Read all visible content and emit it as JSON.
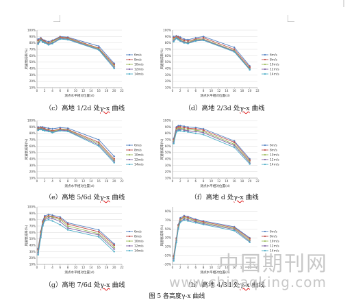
{
  "figure_title": "图 5  各高度γ-x 曲线",
  "watermark": {
    "text": "中国期刊网",
    "url": "www.chinaqking.com"
  },
  "colors": {
    "series": [
      "#4f7fc1",
      "#c0504d",
      "#9bbb59",
      "#8064a2",
      "#4bacc6"
    ],
    "grid": "#d9d9d9",
    "axis": "#888888"
  },
  "chart_data": [
    {
      "id": "c",
      "type": "line",
      "caption_prefix": "（c）高地 1/2d 处",
      "caption_link": "γ-x",
      "caption_suffix": " 曲线",
      "xlabel": "测点水平相对位置(d)",
      "ylabel": "风速衰减率(%)",
      "xlim": [
        0,
        22
      ],
      "ylim": [
        10,
        100
      ],
      "xticks": [
        "0",
        "2",
        "4",
        "6",
        "8",
        "10",
        "12",
        "14",
        "16",
        "18",
        "20",
        "22"
      ],
      "yticks": [
        "10%",
        "20%",
        "30%",
        "40%",
        "50%",
        "60%",
        "70%",
        "80%",
        "90%",
        "100%"
      ],
      "x": [
        0.3,
        1,
        1.5,
        2,
        3,
        4,
        6,
        8,
        16,
        20
      ],
      "series": [
        {
          "name": "6m/s",
          "values": [
            86,
            88,
            85,
            84,
            82,
            84,
            90,
            89,
            75,
            48
          ]
        },
        {
          "name": "8m/s",
          "values": [
            84,
            87,
            84,
            83,
            80,
            83,
            89,
            88,
            72,
            46
          ]
        },
        {
          "name": "10m/s",
          "values": [
            82,
            86,
            83,
            82,
            79,
            82,
            88,
            87,
            71,
            44
          ]
        },
        {
          "name": "12m/s",
          "values": [
            80,
            85,
            82,
            81,
            78,
            80,
            87,
            86,
            70,
            42
          ]
        },
        {
          "name": "14m/s",
          "values": [
            78,
            84,
            81,
            80,
            77,
            79,
            86,
            85,
            69,
            40
          ]
        }
      ]
    },
    {
      "id": "d",
      "type": "line",
      "caption_prefix": "（d）高地 2/3d 处",
      "caption_link": "γ-x",
      "caption_suffix": " 曲线",
      "xlabel": "测点水平相对位置(d)",
      "ylabel": "风速衰减率(%)",
      "xlim": [
        0,
        22
      ],
      "ylim": [
        10,
        100
      ],
      "xticks": [
        "0",
        "2",
        "4",
        "6",
        "8",
        "10",
        "12",
        "14",
        "16",
        "18",
        "20",
        "22"
      ],
      "yticks": [
        "10%",
        "20%",
        "30%",
        "40%",
        "50%",
        "60%",
        "70%",
        "80%",
        "90%",
        "100%"
      ],
      "x": [
        0.3,
        1,
        1.5,
        2,
        3,
        4,
        6,
        8,
        16,
        20
      ],
      "series": [
        {
          "name": "6m/s",
          "values": [
            90,
            91,
            90,
            89,
            86,
            85,
            88,
            90,
            73,
            44
          ]
        },
        {
          "name": "8m/s",
          "values": [
            88,
            90,
            89,
            87,
            84,
            83,
            86,
            88,
            70,
            42
          ]
        },
        {
          "name": "10m/s",
          "values": [
            86,
            89,
            87,
            85,
            82,
            81,
            85,
            86,
            68,
            40
          ]
        },
        {
          "name": "12m/s",
          "values": [
            84,
            88,
            86,
            84,
            81,
            80,
            84,
            85,
            67,
            39
          ]
        },
        {
          "name": "14m/s",
          "values": [
            82,
            87,
            85,
            83,
            80,
            79,
            83,
            84,
            66,
            38
          ]
        }
      ]
    },
    {
      "id": "e",
      "type": "line",
      "caption_prefix": "（e）高地 5/6d 处",
      "caption_link": "γ-x",
      "caption_suffix": " 曲线",
      "xlabel": "测点水平相对位置(d)",
      "ylabel": "风速衰减率(%)",
      "xlim": [
        0,
        22
      ],
      "ylim": [
        10,
        100
      ],
      "xticks": [
        "0",
        "2",
        "4",
        "6",
        "8",
        "10",
        "12",
        "14",
        "16",
        "18",
        "20",
        "22"
      ],
      "yticks": [
        "10%",
        "20%",
        "30%",
        "40%",
        "50%",
        "60%",
        "70%",
        "80%",
        "90%",
        "100%"
      ],
      "x": [
        0.3,
        1,
        1.5,
        2,
        3,
        4,
        6,
        8,
        16,
        20
      ],
      "series": [
        {
          "name": "6m/s",
          "values": [
            90,
            90,
            90,
            89,
            88,
            87,
            89,
            88,
            70,
            44
          ]
        },
        {
          "name": "8m/s",
          "values": [
            88,
            89,
            88,
            87,
            86,
            84,
            87,
            86,
            66,
            40
          ]
        },
        {
          "name": "10m/s",
          "values": [
            87,
            88,
            87,
            86,
            85,
            83,
            86,
            85,
            64,
            38
          ]
        },
        {
          "name": "12m/s",
          "values": [
            86,
            87,
            86,
            85,
            84,
            82,
            85,
            84,
            62,
            36
          ]
        },
        {
          "name": "14m/s",
          "values": [
            85,
            86,
            85,
            84,
            83,
            81,
            84,
            83,
            60,
            34
          ]
        }
      ]
    },
    {
      "id": "f",
      "type": "line",
      "caption_prefix": "（f）高地 d 处",
      "caption_link": "γ-x",
      "caption_suffix": " 曲线",
      "xlabel": "测点水平相对位置(d)",
      "ylabel": "风速衰减率(%)",
      "xlim": [
        0,
        22
      ],
      "ylim": [
        10,
        100
      ],
      "xticks": [
        "0",
        "2",
        "4",
        "6",
        "8",
        "10",
        "12",
        "14",
        "16",
        "18",
        "20",
        "22"
      ],
      "yticks": [
        "10%",
        "20%",
        "30%",
        "40%",
        "50%",
        "60%",
        "70%",
        "80%",
        "90%",
        "100%"
      ],
      "x": [
        0.3,
        1,
        1.5,
        2,
        3,
        4,
        6,
        8,
        16,
        20
      ],
      "series": [
        {
          "name": "6m/s",
          "values": [
            72,
            90,
            92,
            92,
            91,
            90,
            89,
            87,
            68,
            40
          ]
        },
        {
          "name": "8m/s",
          "values": [
            70,
            88,
            90,
            90,
            89,
            88,
            87,
            85,
            66,
            38
          ]
        },
        {
          "name": "10m/s",
          "values": [
            68,
            86,
            88,
            88,
            87,
            86,
            85,
            83,
            63,
            36
          ]
        },
        {
          "name": "12m/s",
          "values": [
            66,
            84,
            86,
            86,
            85,
            84,
            83,
            81,
            61,
            34
          ]
        },
        {
          "name": "14m/s",
          "values": [
            64,
            82,
            84,
            84,
            83,
            82,
            80,
            78,
            58,
            32
          ]
        }
      ]
    },
    {
      "id": "g",
      "type": "line",
      "caption_prefix": "（g）高地 7/6d 处",
      "caption_link": "γ-x",
      "caption_suffix": " 曲线",
      "xlabel": "测点水平相对位置(d)",
      "ylabel": "风速衰减率(%)",
      "xlim": [
        0,
        22
      ],
      "ylim": [
        10,
        100
      ],
      "xticks": [
        "0",
        "2",
        "4",
        "6",
        "8",
        "10",
        "12",
        "14",
        "16",
        "18",
        "20",
        "22"
      ],
      "yticks": [
        "10%",
        "20%",
        "30%",
        "40%",
        "50%",
        "60%",
        "70%",
        "80%",
        "90%",
        "100%"
      ],
      "x": [
        0.3,
        1,
        1.5,
        2,
        3,
        4,
        6,
        8,
        16,
        20
      ],
      "series": [
        {
          "name": "6m/s",
          "values": [
            35,
            62,
            78,
            86,
            88,
            87,
            84,
            75,
            64,
            42
          ]
        },
        {
          "name": "8m/s",
          "values": [
            33,
            60,
            76,
            84,
            86,
            85,
            82,
            73,
            61,
            40
          ]
        },
        {
          "name": "10m/s",
          "values": [
            30,
            58,
            74,
            82,
            85,
            84,
            80,
            70,
            58,
            37
          ]
        },
        {
          "name": "12m/s",
          "values": [
            28,
            55,
            72,
            80,
            83,
            82,
            77,
            67,
            56,
            34
          ]
        },
        {
          "name": "14m/s",
          "values": [
            25,
            52,
            70,
            78,
            80,
            78,
            72,
            64,
            53,
            30
          ]
        }
      ]
    },
    {
      "id": "h",
      "type": "line",
      "caption_prefix": "（h）高地 4/3d 处",
      "caption_link": "γ-x",
      "caption_suffix": " 曲线",
      "xlabel": "测点水平相对位置(d)",
      "ylabel": "风速衰减率(%)",
      "xlim": [
        0,
        22
      ],
      "ylim": [
        -30,
        100
      ],
      "xticks": [
        "0",
        "2",
        "4",
        "6",
        "8",
        "10",
        "12",
        "14",
        "16",
        "18",
        "20",
        "22"
      ],
      "yticks": [
        "-30%",
        "-10%",
        "10%",
        "30%",
        "50%",
        "70%",
        "90%"
      ],
      "x": [
        0.3,
        1,
        1.5,
        2,
        3,
        4,
        6,
        8,
        16,
        20
      ],
      "series": [
        {
          "name": "6m/s",
          "values": [
            -10,
            30,
            60,
            75,
            80,
            78,
            72,
            68,
            55,
            30
          ]
        },
        {
          "name": "8m/s",
          "values": [
            -12,
            28,
            58,
            72,
            78,
            76,
            70,
            66,
            53,
            28
          ]
        },
        {
          "name": "10m/s",
          "values": [
            -15,
            25,
            55,
            70,
            76,
            74,
            68,
            64,
            51,
            25
          ]
        },
        {
          "name": "12m/s",
          "values": [
            -18,
            22,
            52,
            67,
            73,
            71,
            66,
            62,
            49,
            22
          ]
        },
        {
          "name": "14m/s",
          "values": [
            -22,
            20,
            50,
            65,
            70,
            68,
            64,
            60,
            46,
            20
          ]
        }
      ]
    }
  ]
}
